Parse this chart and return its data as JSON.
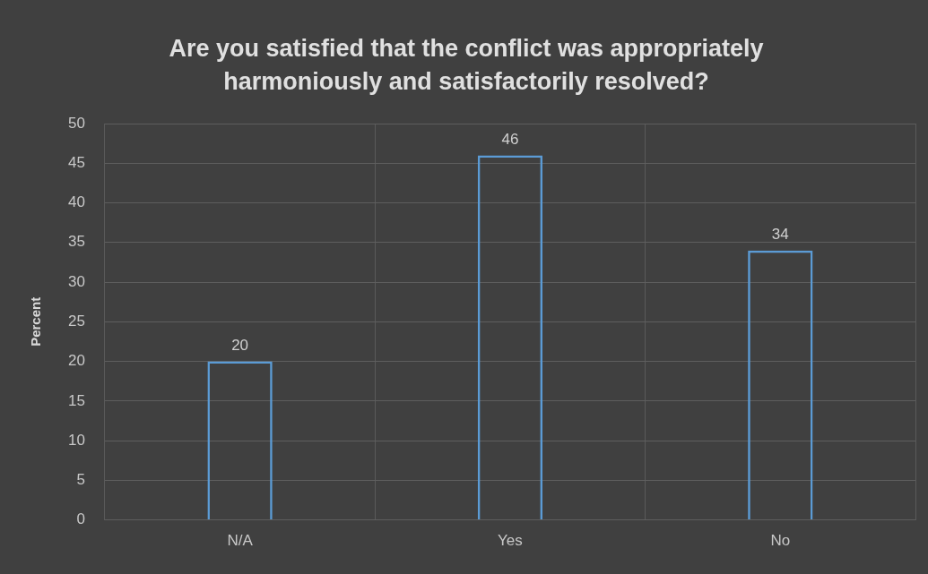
{
  "chart_data": {
    "type": "bar",
    "title": "Are you satisfied that the conflict was appropriately harmoniously and satisfactorily resolved?",
    "ylabel": "Percent",
    "categories": [
      "N/A",
      "Yes",
      "No"
    ],
    "values": [
      20,
      46,
      34
    ],
    "data_labels": true,
    "color": "#5b9bd5",
    "ylim": [
      0,
      50
    ],
    "yticks": [
      0,
      5,
      10,
      15,
      20,
      25,
      30,
      35,
      40,
      45,
      50
    ],
    "grid": true,
    "legend": false
  }
}
